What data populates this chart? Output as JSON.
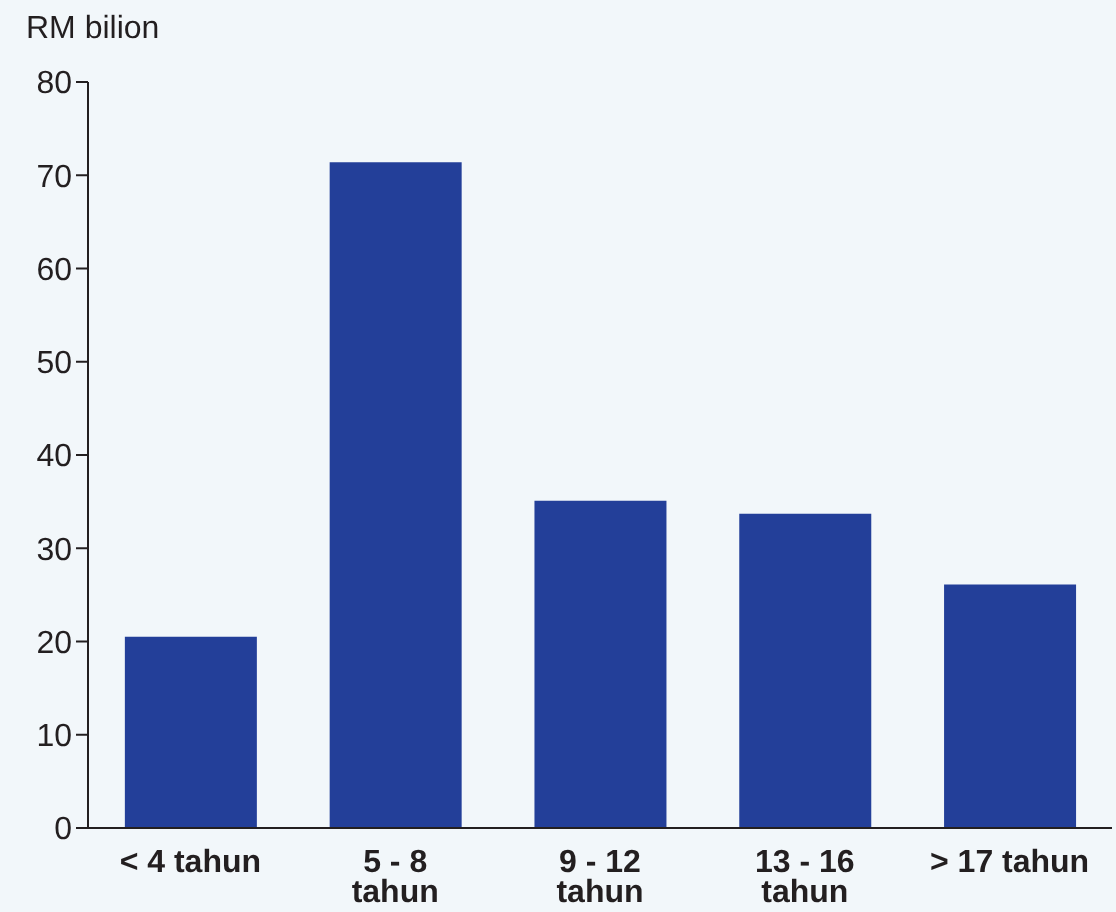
{
  "chart_data": {
    "type": "bar",
    "ylabel": "RM bilion",
    "categories": [
      "< 4 tahun",
      "5 - 8\ntahun",
      "9 - 12\ntahun",
      "13 - 16\ntahun",
      "> 17 tahun"
    ],
    "values": [
      20.5,
      71.4,
      35.1,
      33.7,
      26.1
    ],
    "color": "#233f99",
    "ylim": [
      0,
      80
    ],
    "yticks": [
      0,
      10,
      20,
      30,
      40,
      50,
      60,
      70,
      80
    ],
    "grid": false
  }
}
